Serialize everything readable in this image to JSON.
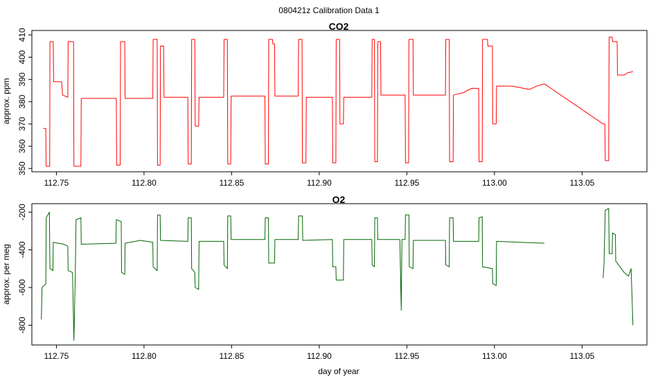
{
  "figure": {
    "title": "080421z   Calibration Data 1",
    "xlabel": "day of year"
  },
  "colors": {
    "co2": "#ff0000",
    "o2": "#006400"
  },
  "chart_data": [
    {
      "type": "line",
      "title": "CO2",
      "xlabel": "",
      "ylabel": "approx. ppm",
      "xlim": [
        112.736,
        113.087
      ],
      "ylim": [
        348.5,
        412
      ],
      "x_ticks": [
        112.75,
        112.8,
        112.85,
        112.9,
        112.95,
        113.0,
        113.05
      ],
      "x_tick_labels": [
        "112.75",
        "112.80",
        "112.85",
        "112.90",
        "112.95",
        "113.00",
        "113.05"
      ],
      "y_ticks": [
        350,
        360,
        370,
        380,
        390,
        400,
        410
      ],
      "y_tick_labels": [
        "350",
        "360",
        "370",
        "380",
        "390",
        "400",
        "410"
      ],
      "series": [
        {
          "color": "#ff0000",
          "points": [
            [
              112.7425,
              368
            ],
            [
              112.744,
              368
            ],
            [
              112.7441,
              351
            ],
            [
              112.7462,
              351
            ],
            [
              112.7463,
              407
            ],
            [
              112.7482,
              407
            ],
            [
              112.7484,
              389
            ],
            [
              112.753,
              389
            ],
            [
              112.7535,
              383
            ],
            [
              112.7565,
              382
            ],
            [
              112.7567,
              407
            ],
            [
              112.7598,
              407
            ],
            [
              112.76,
              351
            ],
            [
              112.764,
              351
            ],
            [
              112.7642,
              381.5
            ],
            [
              112.7842,
              381.5
            ],
            [
              112.7844,
              351.5
            ],
            [
              112.7864,
              351.5
            ],
            [
              112.7866,
              407
            ],
            [
              112.789,
              407
            ],
            [
              112.7892,
              381.5
            ],
            [
              112.805,
              381.5
            ],
            [
              112.8052,
              408
            ],
            [
              112.8075,
              408
            ],
            [
              112.8077,
              351.5
            ],
            [
              112.8092,
              351.5
            ],
            [
              112.8094,
              405
            ],
            [
              112.8112,
              405
            ],
            [
              112.8114,
              382
            ],
            [
              112.825,
              382
            ],
            [
              112.8252,
              352
            ],
            [
              112.827,
              352
            ],
            [
              112.8272,
              408
            ],
            [
              112.829,
              408
            ],
            [
              112.8292,
              369
            ],
            [
              112.8312,
              369
            ],
            [
              112.8314,
              382
            ],
            [
              112.8455,
              382
            ],
            [
              112.8457,
              408
            ],
            [
              112.8476,
              408
            ],
            [
              112.8478,
              352
            ],
            [
              112.8495,
              352
            ],
            [
              112.8497,
              382.5
            ],
            [
              112.869,
              382.5
            ],
            [
              112.8692,
              352
            ],
            [
              112.871,
              352
            ],
            [
              112.8712,
              408
            ],
            [
              112.8733,
              408
            ],
            [
              112.8735,
              406
            ],
            [
              112.8745,
              406
            ],
            [
              112.8747,
              382.5
            ],
            [
              112.888,
              382.5
            ],
            [
              112.8882,
              408
            ],
            [
              112.8902,
              408
            ],
            [
              112.8904,
              352.5
            ],
            [
              112.8924,
              352.5
            ],
            [
              112.8926,
              382
            ],
            [
              112.9075,
              382
            ],
            [
              112.9077,
              352.5
            ],
            [
              112.9095,
              352.5
            ],
            [
              112.9097,
              408
            ],
            [
              112.9116,
              408
            ],
            [
              112.9118,
              370
            ],
            [
              112.9138,
              370
            ],
            [
              112.914,
              382
            ],
            [
              112.93,
              382
            ],
            [
              112.9302,
              408
            ],
            [
              112.9315,
              408
            ],
            [
              112.9317,
              353
            ],
            [
              112.9332,
              353
            ],
            [
              112.9334,
              407
            ],
            [
              112.935,
              407
            ],
            [
              112.9352,
              383
            ],
            [
              112.949,
              383
            ],
            [
              112.9492,
              352.5
            ],
            [
              112.951,
              352.5
            ],
            [
              112.9512,
              408
            ],
            [
              112.9535,
              408
            ],
            [
              112.9537,
              383
            ],
            [
              112.972,
              383
            ],
            [
              112.9722,
              408
            ],
            [
              112.9742,
              408
            ],
            [
              112.9744,
              353
            ],
            [
              112.9764,
              353
            ],
            [
              112.9766,
              383
            ],
            [
              112.982,
              384
            ],
            [
              112.987,
              386
            ],
            [
              112.991,
              386
            ],
            [
              112.9912,
              353
            ],
            [
              112.993,
              353
            ],
            [
              112.9932,
              408
            ],
            [
              112.996,
              408
            ],
            [
              112.9962,
              405
            ],
            [
              112.9988,
              405
            ],
            [
              112.999,
              370
            ],
            [
              113.001,
              370
            ],
            [
              113.0012,
              387
            ],
            [
              113.01,
              387
            ],
            [
              113.02,
              385.5
            ],
            [
              113.024,
              387
            ],
            [
              113.0285,
              388
            ],
            [
              113.062,
              370
            ],
            [
              113.063,
              370
            ],
            [
              113.0632,
              353.5
            ],
            [
              113.0652,
              353.5
            ],
            [
              113.0654,
              409
            ],
            [
              113.0672,
              409
            ],
            [
              113.0674,
              407
            ],
            [
              113.07,
              407
            ],
            [
              113.0702,
              392
            ],
            [
              113.074,
              392
            ],
            [
              113.076,
              393
            ],
            [
              113.079,
              393.5
            ]
          ]
        }
      ]
    },
    {
      "type": "line",
      "title": "O2",
      "xlabel": "day of year",
      "ylabel": "approx. per meg",
      "xlim": [
        112.736,
        113.087
      ],
      "ylim": [
        -905,
        -155
      ],
      "x_ticks": [
        112.75,
        112.8,
        112.85,
        112.9,
        112.95,
        113.0,
        113.05
      ],
      "x_tick_labels": [
        "112.75",
        "112.80",
        "112.85",
        "112.90",
        "112.95",
        "113.00",
        "113.05"
      ],
      "y_ticks": [
        -800,
        -600,
        -400,
        -200
      ],
      "y_tick_labels": [
        "-800",
        "-600",
        "-400",
        "-200"
      ],
      "series": [
        {
          "color": "#006400",
          "points": [
            [
              112.7414,
              -770
            ],
            [
              112.7418,
              -600
            ],
            [
              112.744,
              -580
            ],
            [
              112.7442,
              -230
            ],
            [
              112.746,
              -200
            ],
            [
              112.7463,
              -500
            ],
            [
              112.748,
              -510
            ],
            [
              112.7482,
              -360
            ],
            [
              112.754,
              -370
            ],
            [
              112.7565,
              -380
            ],
            [
              112.7567,
              -510
            ],
            [
              112.7592,
              -520
            ],
            [
              112.76,
              -880
            ],
            [
              112.7608,
              -530
            ],
            [
              112.7612,
              -240
            ],
            [
              112.764,
              -230
            ],
            [
              112.7642,
              -370
            ],
            [
              112.784,
              -365
            ],
            [
              112.7842,
              -240
            ],
            [
              112.787,
              -250
            ],
            [
              112.7872,
              -520
            ],
            [
              112.789,
              -530
            ],
            [
              112.7892,
              -365
            ],
            [
              112.798,
              -350
            ],
            [
              112.805,
              -360
            ],
            [
              112.8052,
              -490
            ],
            [
              112.8075,
              -510
            ],
            [
              112.8077,
              -215
            ],
            [
              112.8092,
              -215
            ],
            [
              112.8094,
              -350
            ],
            [
              112.825,
              -355
            ],
            [
              112.8252,
              -230
            ],
            [
              112.827,
              -230
            ],
            [
              112.8272,
              -500
            ],
            [
              112.829,
              -520
            ],
            [
              112.8292,
              -600
            ],
            [
              112.8312,
              -610
            ],
            [
              112.8314,
              -355
            ],
            [
              112.8455,
              -355
            ],
            [
              112.8457,
              -480
            ],
            [
              112.8476,
              -500
            ],
            [
              112.8478,
              -220
            ],
            [
              112.8495,
              -220
            ],
            [
              112.8497,
              -345
            ],
            [
              112.869,
              -345
            ],
            [
              112.8692,
              -230
            ],
            [
              112.871,
              -230
            ],
            [
              112.8712,
              -470
            ],
            [
              112.8745,
              -470
            ],
            [
              112.8747,
              -345
            ],
            [
              112.888,
              -345
            ],
            [
              112.8882,
              -220
            ],
            [
              112.8904,
              -220
            ],
            [
              112.8906,
              -350
            ],
            [
              112.9075,
              -345
            ],
            [
              112.9077,
              -490
            ],
            [
              112.9095,
              -490
            ],
            [
              112.9097,
              -560
            ],
            [
              112.9138,
              -560
            ],
            [
              112.914,
              -345
            ],
            [
              112.93,
              -345
            ],
            [
              112.9302,
              -480
            ],
            [
              112.9315,
              -490
            ],
            [
              112.9317,
              -230
            ],
            [
              112.9332,
              -230
            ],
            [
              112.9334,
              -345
            ],
            [
              112.946,
              -345
            ],
            [
              112.9468,
              -720
            ],
            [
              112.9472,
              -345
            ],
            [
              112.949,
              -345
            ],
            [
              112.9492,
              -215
            ],
            [
              112.9512,
              -215
            ],
            [
              112.9514,
              -490
            ],
            [
              112.9535,
              -500
            ],
            [
              112.9537,
              -350
            ],
            [
              112.972,
              -350
            ],
            [
              112.9722,
              -480
            ],
            [
              112.9742,
              -490
            ],
            [
              112.9744,
              -230
            ],
            [
              112.9764,
              -230
            ],
            [
              112.9766,
              -355
            ],
            [
              112.991,
              -355
            ],
            [
              112.9912,
              -230
            ],
            [
              112.993,
              -225
            ],
            [
              112.9932,
              -490
            ],
            [
              112.9988,
              -500
            ],
            [
              112.999,
              -580
            ],
            [
              113.001,
              -590
            ],
            [
              113.0012,
              -355
            ],
            [
              113.0285,
              -365
            ]
          ]
        },
        {
          "color": "#006400",
          "points": [
            [
              113.062,
              -550
            ],
            [
              113.0625,
              -480
            ],
            [
              113.0632,
              -190
            ],
            [
              113.0652,
              -180
            ],
            [
              113.0655,
              -420
            ],
            [
              113.0672,
              -420
            ],
            [
              113.0674,
              -310
            ],
            [
              113.069,
              -320
            ],
            [
              113.0692,
              -460
            ],
            [
              113.074,
              -520
            ],
            [
              113.0765,
              -540
            ],
            [
              113.078,
              -500
            ],
            [
              113.079,
              -800
            ]
          ]
        }
      ]
    }
  ]
}
